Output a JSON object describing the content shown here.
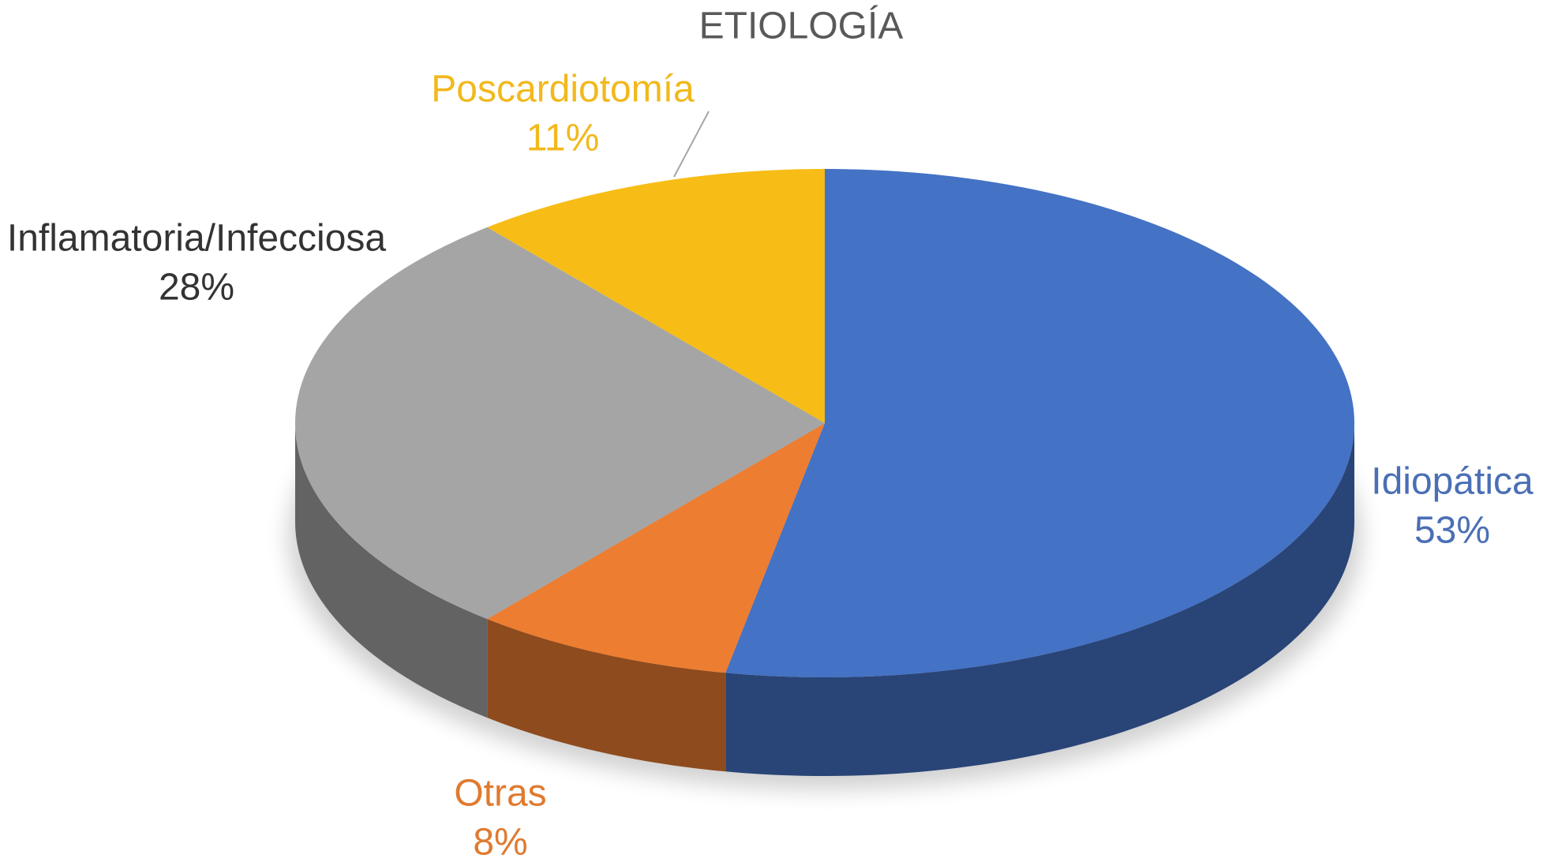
{
  "chart_data": {
    "type": "pie",
    "title": "ETIOLOGÍA",
    "categories": [
      "Idiopática",
      "Otras",
      "Inflamatoria/Infecciosa",
      "Poscardiotomía"
    ],
    "values": [
      53,
      8,
      28,
      11
    ],
    "value_labels": [
      "53%",
      "8%",
      "28%",
      "11%"
    ],
    "colors": [
      "#4472c4",
      "#ed7d31",
      "#a5a5a5",
      "#f7bd16"
    ]
  }
}
